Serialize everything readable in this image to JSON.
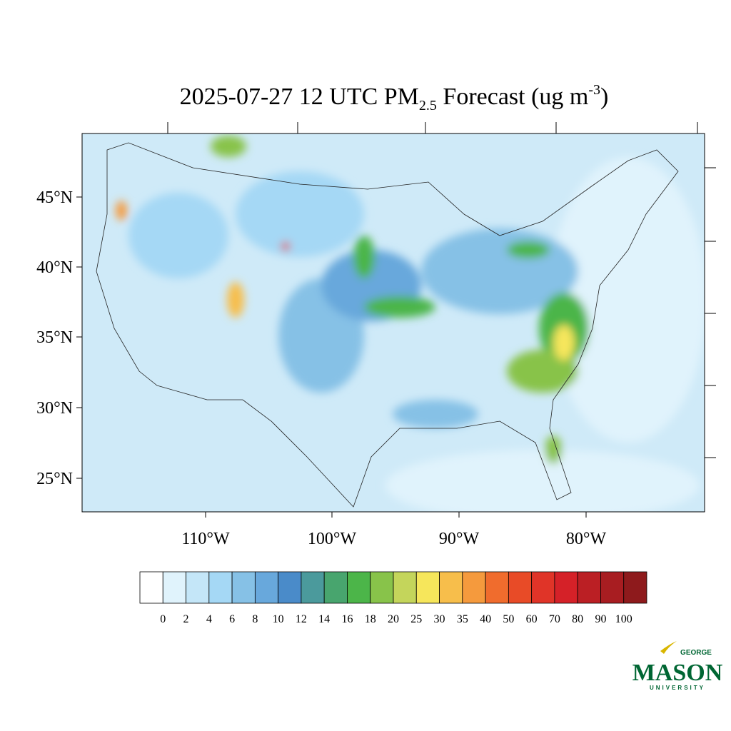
{
  "title": {
    "main": "2025-07-27 12 UTC PM",
    "subscript": "2.5",
    "middle": " Forecast (ug m",
    "superscript": "-3",
    "end": ")"
  },
  "lat_labels": [
    "45°N",
    "40°N",
    "35°N",
    "30°N",
    "25°N"
  ],
  "lon_labels": [
    "110°W",
    "100°W",
    "90°W",
    "80°W"
  ],
  "colorbar": {
    "levels": [
      0,
      2,
      4,
      6,
      8,
      10,
      12,
      14,
      16,
      18,
      20,
      25,
      30,
      35,
      40,
      50,
      60,
      70,
      80,
      90,
      100
    ],
    "colors": [
      "#ffffff",
      "#e0f3fc",
      "#c4e6f8",
      "#a5d8f5",
      "#86c1e6",
      "#68a8dc",
      "#4a8bc9",
      "#4b9a9c",
      "#48a56e",
      "#4cb549",
      "#88c34a",
      "#c4d55b",
      "#f6e65b",
      "#f7be4b",
      "#f59a3d",
      "#f06c2d",
      "#e84b27",
      "#e03428",
      "#d52128",
      "#bb1f24",
      "#a81d21",
      "#8e1a1c"
    ]
  },
  "logo": {
    "top": "GEORGE",
    "main": "MASON",
    "bottom": "UNIVERSITY"
  }
}
